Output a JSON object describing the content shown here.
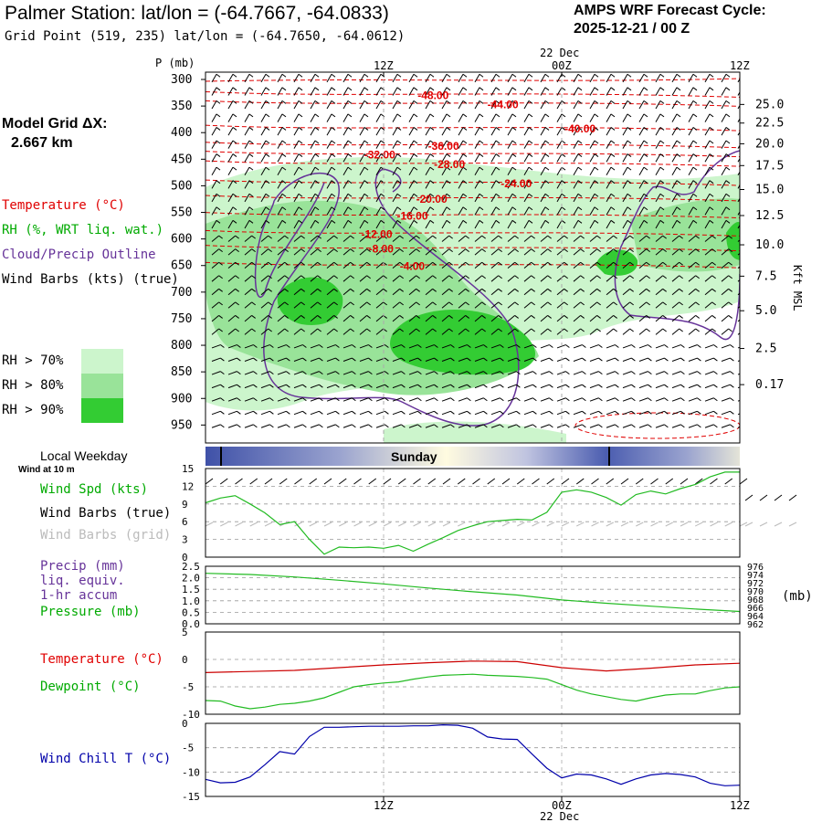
{
  "header": {
    "station_title": "Palmer Station:  lat/lon = (-64.7667, -64.0833)",
    "grid_point": "Grid Point (519, 235) lat/lon = (-64.7650, -64.0612)",
    "cycle_line1": "AMPS WRF Forecast Cycle:",
    "cycle_line2": "2025-12-21 / 00  Z"
  },
  "model_grid": {
    "label": "Model Grid ΔX:",
    "value": "2.667 km"
  },
  "time_axis": {
    "date_label": "22 Dec",
    "ticks": [
      {
        "label": "12Z",
        "hour": 12
      },
      {
        "label": "00Z",
        "hour": 24
      },
      {
        "label": "12Z",
        "hour": 36
      }
    ],
    "start_hour": 0,
    "end_hour": 36
  },
  "legend": {
    "temperature": "Temperature (°C)",
    "rh": "RH (%, WRT liq. wat.)",
    "cloud": "Cloud/Precip Outline",
    "wind": "Wind Barbs (kts) (true)",
    "rh_levels": [
      {
        "label": "RH > 70%",
        "color": "#ccf5cc"
      },
      {
        "label": "RH > 80%",
        "color": "#99e399"
      },
      {
        "label": "RH > 90%",
        "color": "#33cc33"
      }
    ]
  },
  "colors": {
    "temperature": "#e00000",
    "rh_label": "#00aa00",
    "cloud": "#663399",
    "wind_chill": "#0000aa",
    "dewpoint": "#22bb22"
  },
  "chart_data": [
    {
      "type": "heatmap",
      "title": "Vertical time section",
      "ylabel": "P (mb)",
      "ylabel_right": "Kft MSL",
      "pressure_ticks": [
        300,
        350,
        400,
        450,
        500,
        550,
        600,
        650,
        700,
        750,
        800,
        850,
        900,
        950
      ],
      "height_ticks": [
        {
          "kft": "25.0",
          "p": 347
        },
        {
          "kft": "22.5",
          "p": 382
        },
        {
          "kft": "20.0",
          "p": 421
        },
        {
          "kft": "17.5",
          "p": 462
        },
        {
          "kft": "15.0",
          "p": 507
        },
        {
          "kft": "12.5",
          "p": 556
        },
        {
          "kft": "10.0",
          "p": 611
        },
        {
          "kft": "7.5",
          "p": 670
        },
        {
          "kft": "5.0",
          "p": 735
        },
        {
          "kft": "2.5",
          "p": 806
        },
        {
          "kft": "0.17",
          "p": 874
        }
      ],
      "temperature_labels": [
        {
          "text": "-48.00",
          "hour": 15.4,
          "p": 330
        },
        {
          "text": "-44.00",
          "hour": 20.1,
          "p": 347
        },
        {
          "text": "-40.00",
          "hour": 25.3,
          "p": 393
        },
        {
          "text": "-36.00",
          "hour": 16.1,
          "p": 425
        },
        {
          "text": "-32.00",
          "hour": 11.8,
          "p": 442
        },
        {
          "text": "-28.00",
          "hour": 16.5,
          "p": 460
        },
        {
          "text": "-24.00",
          "hour": 21.0,
          "p": 496
        },
        {
          "text": "-20.00",
          "hour": 15.3,
          "p": 525
        },
        {
          "text": "-16.00",
          "hour": 14.0,
          "p": 557
        },
        {
          "text": "-12.00",
          "hour": 11.6,
          "p": 591
        },
        {
          "text": "-8.00",
          "hour": 12.1,
          "p": 619
        },
        {
          "text": "-4.00",
          "hour": 14.2,
          "p": 651
        }
      ]
    },
    {
      "type": "line",
      "title": "Local Weekday",
      "day_label": "Sunday"
    },
    {
      "type": "line",
      "title": "Wind at 10 m",
      "labels": {
        "speed": "Wind Spd (kts)",
        "barbs_true": "Wind Barbs (true)",
        "barbs_grid": "Wind Barbs (grid)"
      },
      "ylim": [
        0,
        15
      ],
      "y_ticks": [
        0,
        3,
        6,
        9,
        12,
        15
      ],
      "x": [
        0,
        1,
        2,
        3,
        4,
        5,
        6,
        7,
        8,
        9,
        10,
        11,
        12,
        13,
        14,
        15,
        16,
        17,
        18,
        19,
        20,
        21,
        22,
        23,
        24,
        25,
        26,
        27,
        28,
        29,
        30,
        31,
        32,
        33,
        34,
        35,
        36
      ],
      "values": [
        9.2,
        10.0,
        10.4,
        9.0,
        7.5,
        5.5,
        6.0,
        3.0,
        0.5,
        1.7,
        1.6,
        1.7,
        1.5,
        2.0,
        1.0,
        2.2,
        3.3,
        4.5,
        5.3,
        6.0,
        6.2,
        6.4,
        6.3,
        7.6,
        11.0,
        11.4,
        11.0,
        10.1,
        8.8,
        10.6,
        11.2,
        10.7,
        11.6,
        12.3,
        13.6,
        14.4,
        14.4
      ]
    },
    {
      "type": "line",
      "title": "Precip / Pressure",
      "labels": {
        "precip": "Precip (mm)",
        "liq": "liq. equiv.",
        "accum": "1-hr accum",
        "pressure": "Pressure (mb)",
        "units_right": "(mb)"
      },
      "ylim": [
        0,
        2.5
      ],
      "y_ticks": [
        "0.0",
        "0.5",
        "1.0",
        "1.5",
        "2.0",
        "2.5"
      ],
      "ylim_right": [
        962,
        976
      ],
      "y_ticks_right": [
        962,
        964,
        966,
        968,
        970,
        972,
        974,
        976
      ],
      "pressure_x": [
        0,
        3,
        6,
        9,
        12,
        15,
        18,
        21,
        24,
        27,
        30,
        33,
        36
      ],
      "pressure_values": [
        974.3,
        974.0,
        973.4,
        972.6,
        971.7,
        970.7,
        969.8,
        969.0,
        967.8,
        967.0,
        966.3,
        965.6,
        965.0
      ]
    },
    {
      "type": "line",
      "title": "Temperature / Dewpoint",
      "labels": {
        "temperature": "Temperature (°C)",
        "dewpoint": "Dewpoint (°C)"
      },
      "ylim": [
        -10,
        5
      ],
      "y_ticks": [
        5,
        0,
        -5,
        -10
      ],
      "series": [
        {
          "name": "Temperature",
          "x": [
            0,
            3,
            6,
            9,
            12,
            15,
            18,
            21,
            24,
            27,
            30,
            33,
            36
          ],
          "values": [
            -2.4,
            -2.2,
            -2.0,
            -1.5,
            -1.0,
            -0.6,
            -0.3,
            -0.4,
            -1.5,
            -2.1,
            -1.6,
            -1.0,
            -0.7
          ]
        },
        {
          "name": "Dewpoint",
          "x": [
            0,
            1,
            2,
            3,
            4,
            5,
            6,
            7,
            8,
            9,
            10,
            11,
            12,
            13,
            14,
            15,
            16,
            17,
            18,
            19,
            20,
            21,
            22,
            23,
            24,
            25,
            26,
            27,
            28,
            29,
            30,
            31,
            32,
            33,
            34,
            35,
            36
          ],
          "values": [
            -7.5,
            -7.6,
            -8.5,
            -9.0,
            -8.7,
            -8.2,
            -8.0,
            -7.6,
            -7.0,
            -6.0,
            -5.0,
            -4.6,
            -4.3,
            -4.1,
            -3.6,
            -3.2,
            -2.9,
            -2.8,
            -2.7,
            -2.9,
            -3.0,
            -3.1,
            -3.3,
            -3.6,
            -4.6,
            -5.6,
            -6.3,
            -6.8,
            -7.3,
            -7.6,
            -7.0,
            -6.5,
            -6.3,
            -6.3,
            -5.7,
            -5.2,
            -5.0
          ]
        }
      ]
    },
    {
      "type": "line",
      "title": "Wind Chill",
      "labels": {
        "wind_chill": "Wind Chill T (°C)"
      },
      "ylim": [
        -15,
        0
      ],
      "y_ticks": [
        0,
        -5,
        -10,
        -15
      ],
      "x": [
        0,
        1,
        2,
        3,
        4,
        5,
        6,
        7,
        8,
        9,
        10,
        11,
        12,
        13,
        14,
        15,
        16,
        17,
        18,
        19,
        20,
        21,
        22,
        23,
        24,
        25,
        26,
        27,
        28,
        29,
        30,
        31,
        32,
        33,
        34,
        35,
        36
      ],
      "values": [
        -11.5,
        -12.2,
        -12.1,
        -11.0,
        -8.5,
        -5.8,
        -6.3,
        -2.7,
        -0.8,
        -0.8,
        -0.7,
        -0.6,
        -0.6,
        -0.6,
        -0.5,
        -0.5,
        -0.3,
        -0.4,
        -1.0,
        -2.8,
        -3.2,
        -3.3,
        -6.3,
        -9.2,
        -11.2,
        -10.4,
        -10.6,
        -11.4,
        -12.5,
        -11.4,
        -10.6,
        -10.3,
        -10.5,
        -11.0,
        -12.3,
        -12.8,
        -12.7
      ]
    }
  ]
}
